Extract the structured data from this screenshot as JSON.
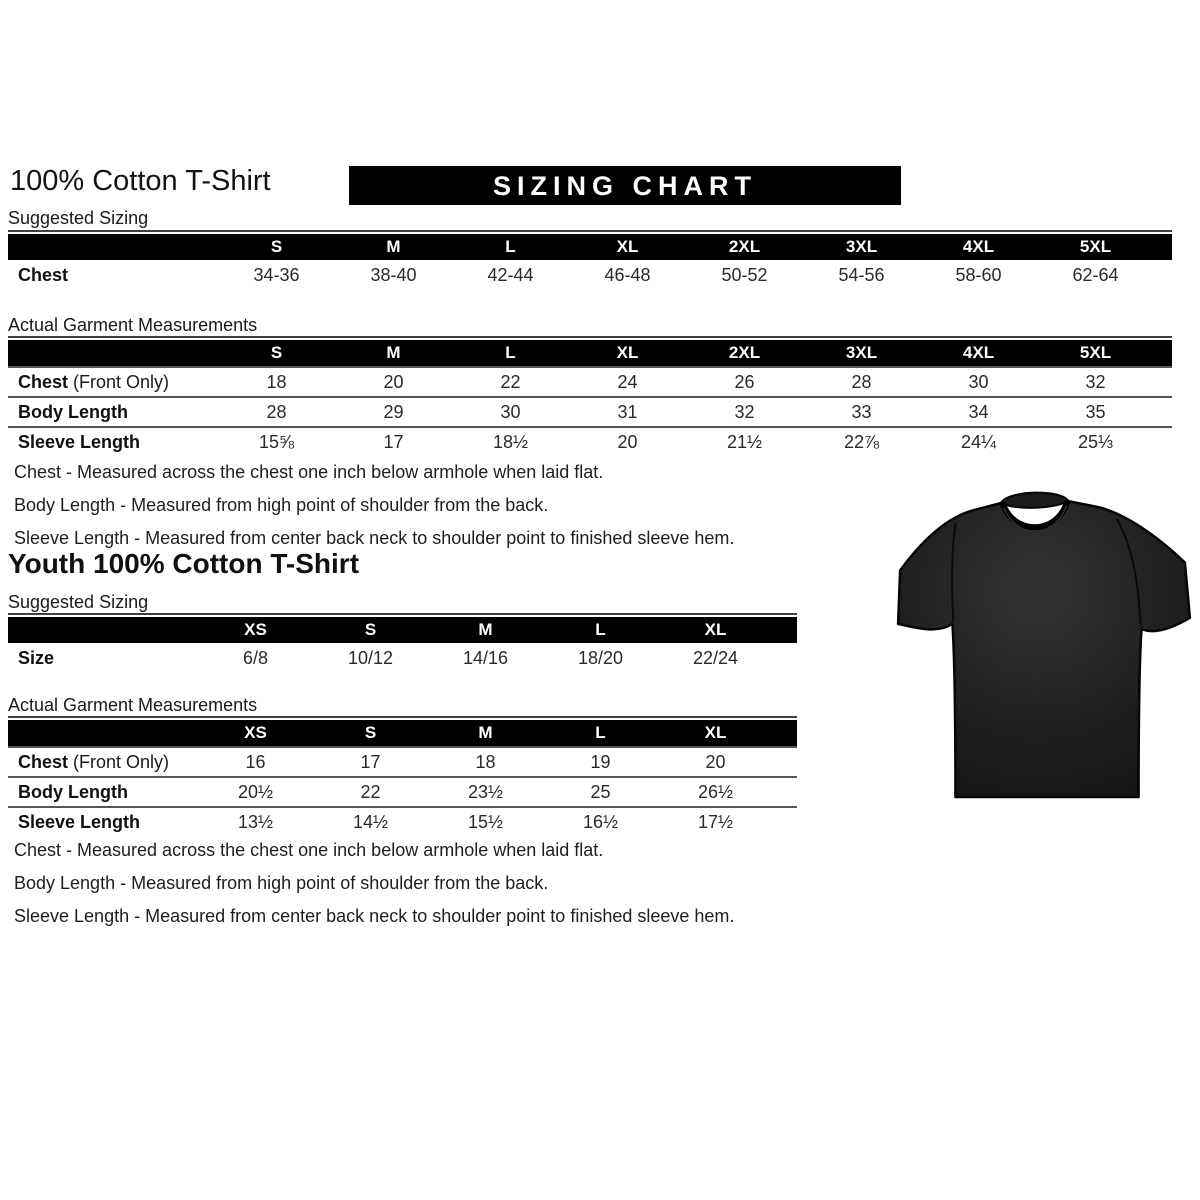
{
  "adult": {
    "title": "100% Cotton T-Shirt",
    "banner": "SIZING CHART",
    "suggested_label": "Suggested Sizing",
    "garment_label": "Actual Garment Measurements",
    "suggested_table": {
      "columns": [
        "S",
        "M",
        "L",
        "XL",
        "2XL",
        "3XL",
        "4XL",
        "5XL"
      ],
      "rows": [
        {
          "label": "Chest",
          "suffix": "",
          "values": [
            "34-36",
            "38-40",
            "42-44",
            "46-48",
            "50-52",
            "54-56",
            "58-60",
            "62-64"
          ]
        }
      ]
    },
    "garment_table": {
      "columns": [
        "S",
        "M",
        "L",
        "XL",
        "2XL",
        "3XL",
        "4XL",
        "5XL"
      ],
      "rows": [
        {
          "label": "Chest",
          "suffix": " (Front Only)",
          "values": [
            "18",
            "20",
            "22",
            "24",
            "26",
            "28",
            "30",
            "32"
          ]
        },
        {
          "label": "Body Length",
          "suffix": "",
          "values": [
            "28",
            "29",
            "30",
            "31",
            "32",
            "33",
            "34",
            "35"
          ]
        },
        {
          "label": "Sleeve Length",
          "suffix": "",
          "values": [
            "15⅝",
            "17",
            "18½",
            "20",
            "21½",
            "22⅞",
            "24¼",
            "25⅓"
          ]
        }
      ]
    },
    "notes": [
      "Chest - Measured across the chest one inch below armhole when laid flat.",
      "Body Length - Measured from high point of shoulder from the back.",
      "Sleeve Length - Measured from center back neck to shoulder point to finished sleeve hem."
    ]
  },
  "youth": {
    "title": "Youth 100% Cotton T-Shirt",
    "suggested_label": "Suggested Sizing",
    "garment_label": "Actual Garment Measurements",
    "suggested_table": {
      "columns": [
        "XS",
        "S",
        "M",
        "L",
        "XL"
      ],
      "rows": [
        {
          "label": "Size",
          "suffix": "",
          "values": [
            "6/8",
            "10/12",
            "14/16",
            "18/20",
            "22/24"
          ]
        }
      ]
    },
    "garment_table": {
      "columns": [
        "XS",
        "S",
        "M",
        "L",
        "XL"
      ],
      "rows": [
        {
          "label": "Chest",
          "suffix": " (Front Only)",
          "values": [
            "16",
            "17",
            "18",
            "19",
            "20"
          ]
        },
        {
          "label": "Body Length",
          "suffix": "",
          "values": [
            "20½",
            "22",
            "23½",
            "25",
            "26½"
          ]
        },
        {
          "label": "Sleeve Length",
          "suffix": "",
          "values": [
            "13½",
            "14½",
            "15½",
            "16½",
            "17½"
          ]
        }
      ]
    },
    "notes": [
      "Chest - Measured across the chest one inch below armhole when laid flat.",
      "Body Length - Measured from high point of shoulder from the back.",
      "Sleeve Length - Measured from center back neck to shoulder point to finished sleeve hem."
    ]
  },
  "tshirt_image": {
    "name": "black-tshirt",
    "color": "#1f1f1f"
  },
  "colors": {
    "bar_bg": "#000000",
    "bar_text": "#ffffff",
    "separator": "#565656",
    "text": "#1c1c1c"
  }
}
